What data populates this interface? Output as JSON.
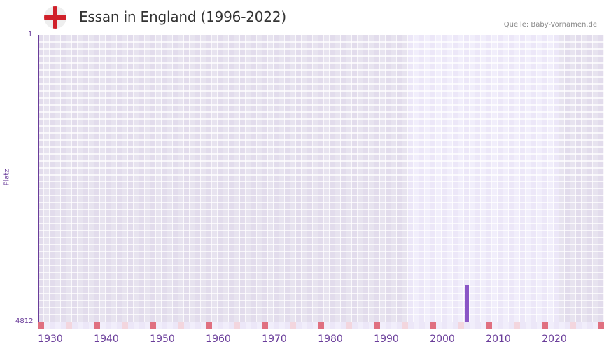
{
  "header": {
    "title": "Essan in England (1996-2022)",
    "source": "Quelle: Baby-Vornamen.de",
    "flag_icon": "england-flag-icon"
  },
  "colors": {
    "accent": "#6a3d9a",
    "bar": "#8a56c6",
    "marker_decade": "#e07080",
    "marker_half": "#f3d6de",
    "grid_dark": "#e2dcec",
    "grid_mid": "#e7e3ef",
    "grid_light_a": "#ece7f8",
    "grid_light_b": "#f1eefb"
  },
  "chart_data": {
    "type": "bar",
    "title": "Essan in England (1996-2022)",
    "xlabel": "",
    "ylabel": "Platz",
    "y_inverted": true,
    "ylim": [
      4812,
      1
    ],
    "y_ticks": [
      "1",
      "4812"
    ],
    "x_range": [
      1928,
      2028
    ],
    "x_ticks": [
      "1930",
      "1940",
      "1950",
      "1960",
      "1970",
      "1980",
      "1990",
      "2000",
      "2010",
      "2020"
    ],
    "data_range_highlight": [
      1994,
      2020
    ],
    "categories": [
      2004
    ],
    "values": [
      4190
    ],
    "series": [
      {
        "name": "Essan",
        "x": [
          2004
        ],
        "rank": [
          4190
        ]
      }
    ],
    "grid": true,
    "legend": null
  },
  "axis": {
    "y_top": "1",
    "y_bottom": "4812",
    "y_title": "Platz",
    "x_labels": [
      "1930",
      "1940",
      "1950",
      "1960",
      "1970",
      "1980",
      "1990",
      "2000",
      "2010",
      "2020"
    ]
  }
}
